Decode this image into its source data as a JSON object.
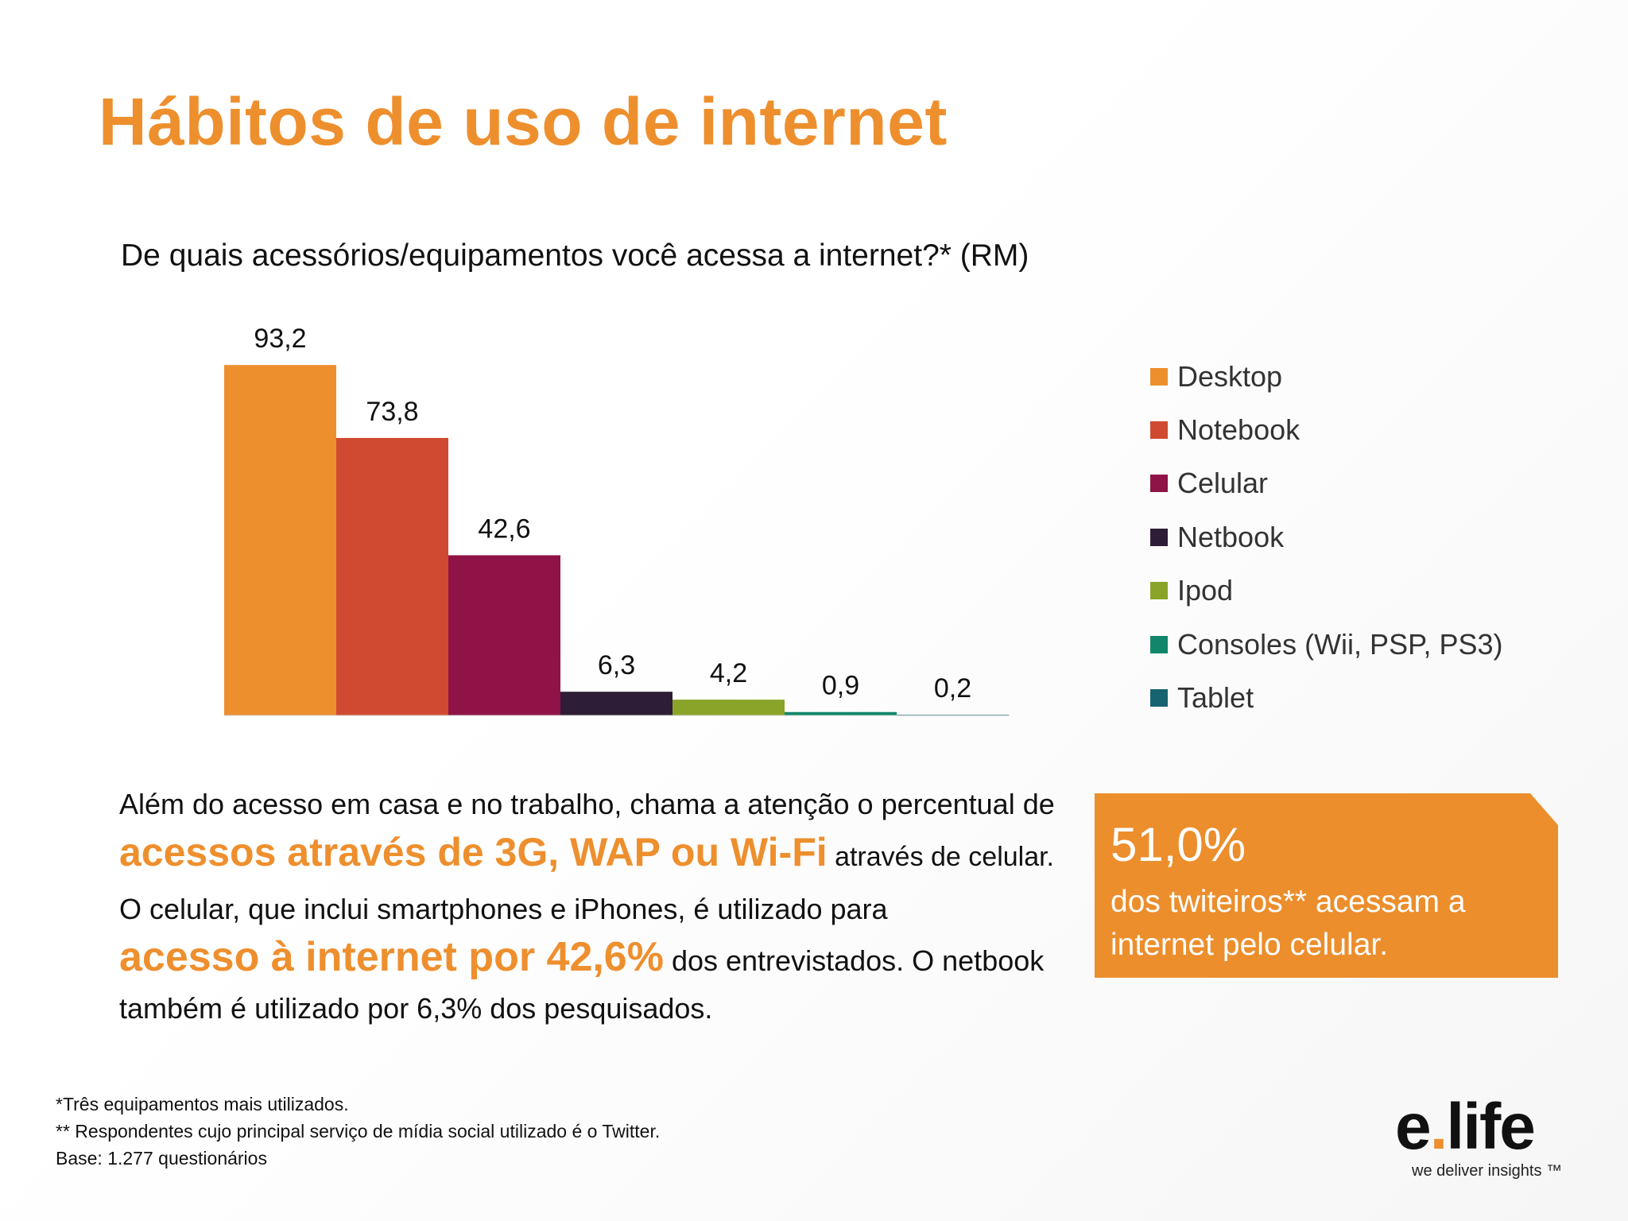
{
  "page": {
    "title": "Hábitos de uso de internet",
    "question": "De quais acessórios/equipamentos você acessa a internet?* (RM)"
  },
  "chart_data": {
    "type": "bar",
    "categories": [
      "Desktop",
      "Notebook",
      "Celular",
      "Netbook",
      "Ipod",
      "Consoles (Wii, PSP, PS3)",
      "Tablet"
    ],
    "values": [
      93.2,
      73.8,
      42.6,
      6.3,
      4.2,
      0.9,
      0.2
    ],
    "value_labels": [
      "93,2",
      "73,8",
      "42,6",
      "6,3",
      "4,2",
      "0,9",
      "0,2"
    ],
    "colors": [
      "#ee8f2e",
      "#cf4a30",
      "#8f1346",
      "#2e1d36",
      "#8aa42a",
      "#11866a",
      "#176370"
    ],
    "ylim": [
      0,
      100
    ],
    "grid": false,
    "legend": "right"
  },
  "body": {
    "p1_text1": "Além do acesso em casa e no trabalho, chama a atenção o percentual de",
    "p1_highlight": "acessos através de 3G, WAP ou Wi-Fi",
    "p1_text2": " através de celular.",
    "p2_text1": "O celular, que inclui smartphones e iPhones, é utilizado para",
    "p2_highlight": "acesso à internet por 42,6%",
    "p2_text2": " dos entrevistados. O netbook também é utilizado por 6,3% dos pesquisados."
  },
  "callout": {
    "value": "51,0%",
    "text": "dos twiteiros** acessam a internet pelo celular.",
    "color": "#ec8e2c"
  },
  "footnotes": [
    "*Três equipamentos mais utilizados.",
    "** Respondentes cujo principal serviço de mídia social utilizado é o Twitter.",
    "Base: 1.277 questionários"
  ],
  "logo": {
    "name_part1": "e",
    "dot": ".",
    "name_part2": "life",
    "tagline": "we deliver insights ™",
    "accent": "#ee8f2e"
  }
}
